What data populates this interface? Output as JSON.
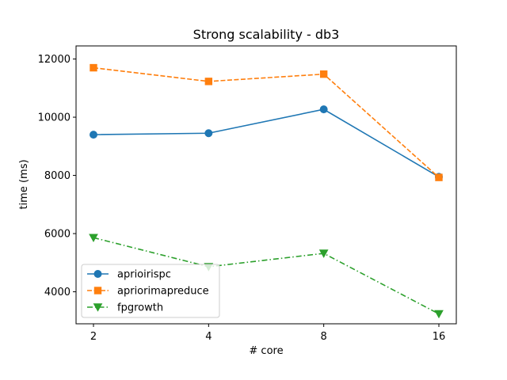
{
  "chart_data": {
    "type": "line",
    "title": "Strong scalability - db3",
    "xlabel": "# core",
    "ylabel": "time (ms)",
    "x": [
      2,
      4,
      8,
      16
    ],
    "x_tick_labels": [
      "2",
      "4",
      "8",
      "16"
    ],
    "x_scale": "log2",
    "y_ticks": [
      4000,
      6000,
      8000,
      10000,
      12000
    ],
    "y_tick_labels": [
      "4000",
      "6000",
      "8000",
      "10000",
      "12000"
    ],
    "ylim": [
      2900,
      12450
    ],
    "grid": false,
    "legend_position": "lower-left",
    "series": [
      {
        "name": "aprioirispc",
        "values": [
          9400,
          9450,
          10270,
          7950
        ],
        "color": "#1f77b4",
        "linestyle": "solid",
        "marker": "circle"
      },
      {
        "name": "apriorimapreduce",
        "values": [
          11700,
          11230,
          11480,
          7930
        ],
        "color": "#ff7f0e",
        "linestyle": "dashed",
        "marker": "square"
      },
      {
        "name": "fpgrowth",
        "values": [
          5860,
          4860,
          5320,
          3240
        ],
        "color": "#2ca02c",
        "linestyle": "dashdot",
        "marker": "triangle-down"
      }
    ]
  }
}
